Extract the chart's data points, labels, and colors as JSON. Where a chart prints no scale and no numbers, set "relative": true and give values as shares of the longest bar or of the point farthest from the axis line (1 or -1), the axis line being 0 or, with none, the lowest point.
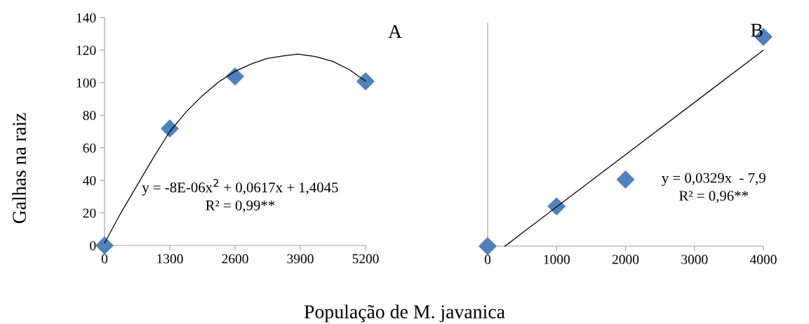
{
  "chart_data": [
    {
      "type": "scatter",
      "title": "A",
      "ylabel": "Galhas na raiz",
      "xlabel": "População de M. javanica",
      "marker": "diamond",
      "grid": false,
      "xlim": [
        0,
        5200
      ],
      "xticks": [
        0,
        1300,
        2600,
        3900,
        5200
      ],
      "ylim": [
        0,
        140
      ],
      "yticks": [
        0,
        20,
        40,
        60,
        80,
        100,
        120,
        140
      ],
      "series": [
        {
          "type": "scatter",
          "color": "#4f81bd",
          "x": [
            0,
            1300,
            2600,
            5200
          ],
          "values": [
            0,
            71.8,
            103.8,
            100.8
          ]
        },
        {
          "type": "line",
          "marker": "none",
          "color": "#000000",
          "x": [
            0,
            325,
            650,
            975,
            1300,
            1625,
            1950,
            2275,
            2600,
            2925,
            3250,
            3575,
            3850,
            4200,
            4550,
            4875,
            5200
          ],
          "values": [
            1.4,
            20,
            37,
            54,
            70,
            82,
            92,
            100.5,
            107,
            111.5,
            115,
            116.5,
            117.5,
            116,
            113,
            108,
            101
          ]
        }
      ],
      "annotations": [
        "y = -8E-06x$^{2}$ + 0,0617x + 1,4045",
        "R² = 0,99**"
      ]
    },
    {
      "type": "scatter",
      "title": "B",
      "relative": true,
      "marker": "diamond",
      "grid": false,
      "xlim": [
        0,
        4000
      ],
      "xticks": [
        0,
        1000,
        2000,
        3000,
        4000
      ],
      "series": [
        {
          "type": "scatter",
          "color": "#4f81bd",
          "x": [
            0,
            1000,
            2000,
            4000
          ],
          "values": [
            0,
            0.19,
            0.318,
            1
          ]
        },
        {
          "type": "line",
          "marker": "none",
          "color": "#000000",
          "x": [
            250,
            4000
          ],
          "values": [
            0,
            0.936
          ]
        }
      ],
      "annotations": [
        "y = 0,0329x  - 7,9",
        "R² = 0,96**"
      ]
    }
  ]
}
